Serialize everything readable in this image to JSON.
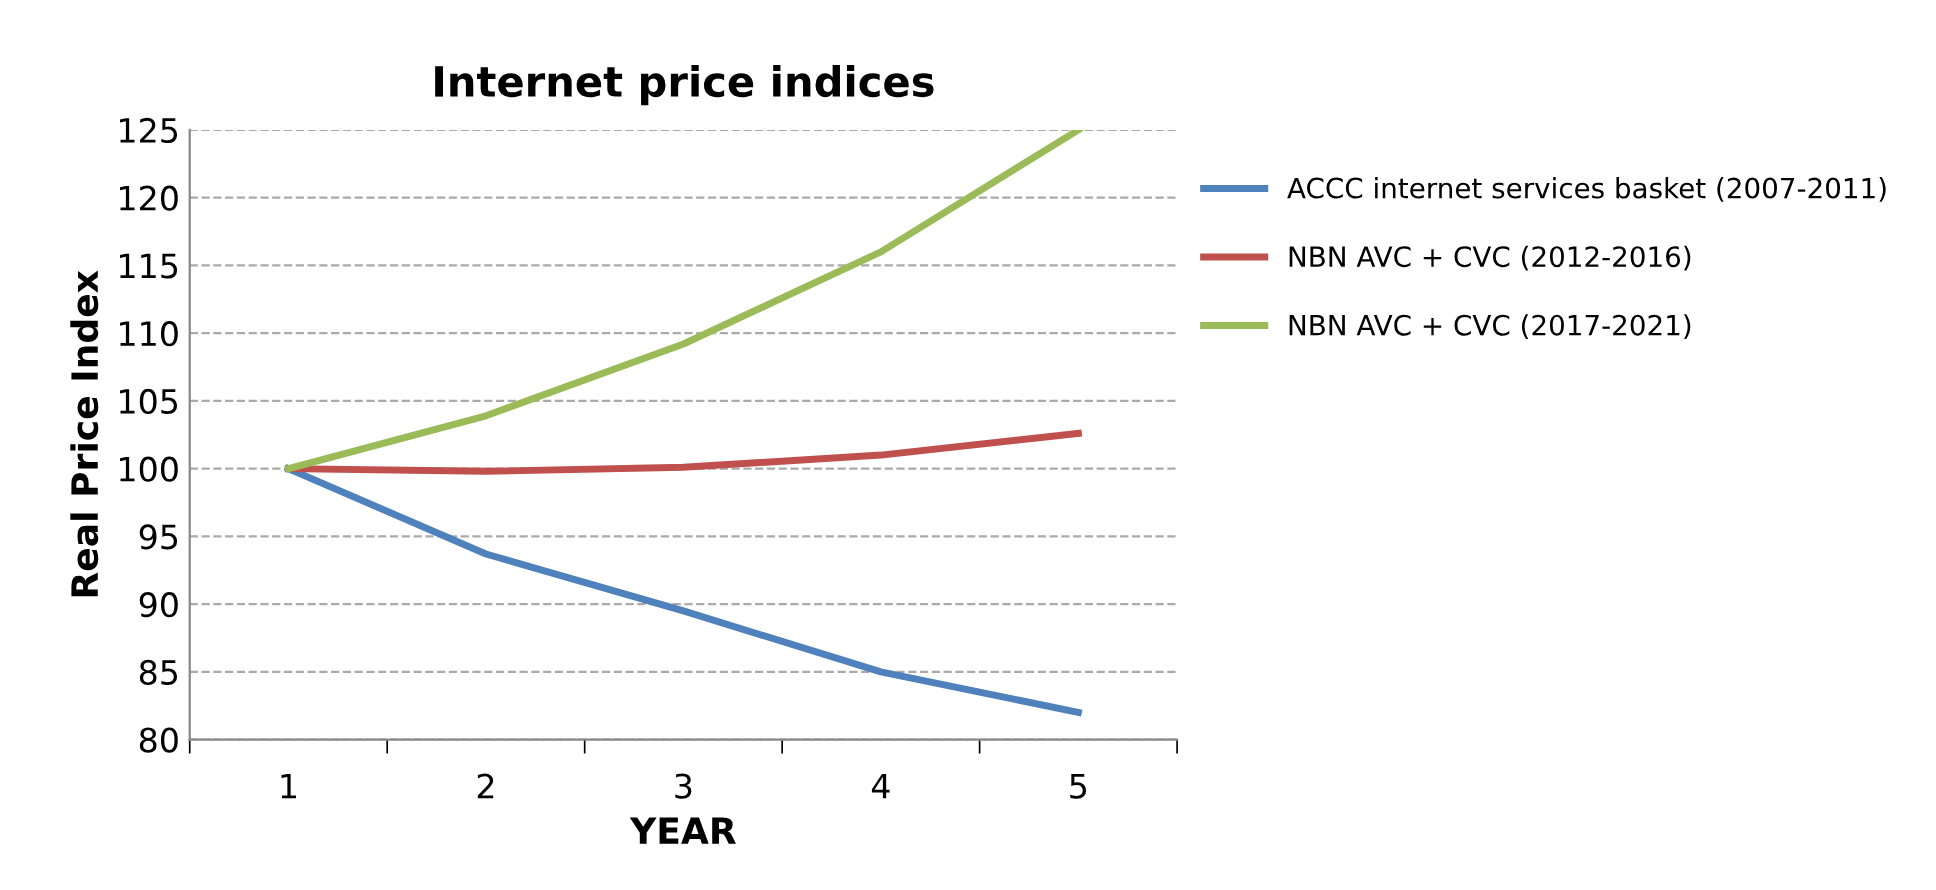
{
  "chart_data": {
    "type": "line",
    "title": "Internet price indices",
    "xlabel": "YEAR",
    "ylabel": "Real Price Index",
    "categories": [
      "1",
      "2",
      "3",
      "4",
      "5"
    ],
    "series": [
      {
        "name": "ACCC internet services basket (2007-2011)",
        "color": "#4f81bd",
        "values": [
          100,
          93.7,
          89.5,
          85,
          82
        ]
      },
      {
        "name": "NBN AVC + CVC (2012-2016)",
        "color": "#c0504d",
        "values": [
          100,
          99.8,
          100.1,
          101,
          102.6
        ]
      },
      {
        "name": "NBN AVC + CVC (2017-2021)",
        "color": "#9bbb59",
        "values": [
          100,
          103.9,
          109.2,
          116,
          125
        ]
      }
    ],
    "ylim": [
      80,
      125
    ],
    "yticks": [
      80,
      85,
      90,
      95,
      100,
      105,
      110,
      115,
      120,
      125
    ],
    "grid": "y",
    "legend": "right",
    "marker": "none",
    "line_style": "solid"
  }
}
